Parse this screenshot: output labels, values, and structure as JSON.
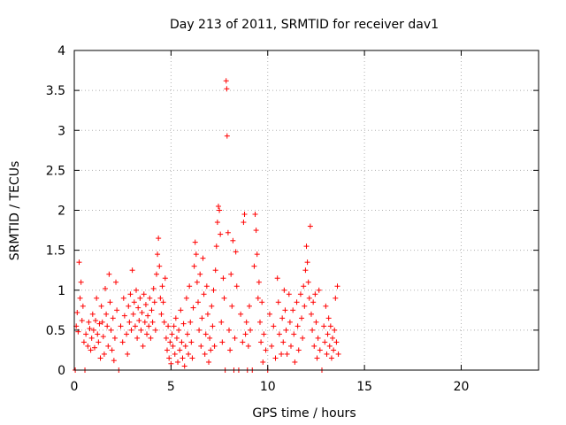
{
  "chart_data": {
    "type": "scatter",
    "title": "Day 213 of 2011, SRMTID for receiver dav1",
    "xlabel": "GPS time / hours",
    "ylabel": "SRMTID / TECUs",
    "xlim": [
      0,
      24
    ],
    "ylim": [
      0,
      4
    ],
    "xticks": [
      0,
      5,
      10,
      15,
      20
    ],
    "yticks": [
      0,
      0.5,
      1,
      1.5,
      2,
      2.5,
      3,
      3.5,
      4
    ],
    "xtick_labels": [
      "0",
      "5",
      "10",
      "15",
      "20"
    ],
    "ytick_labels": [
      "0",
      "0.5",
      "1",
      "1.5",
      "2",
      "2.5",
      "3",
      "3.5",
      "4"
    ],
    "grid": true,
    "marker": "+",
    "marker_color": "#ff0000",
    "series": [
      {
        "name": "dav1",
        "points": [
          [
            0.05,
            0.0
          ],
          [
            0.1,
            0.55
          ],
          [
            0.15,
            0.72
          ],
          [
            0.2,
            0.48
          ],
          [
            0.25,
            1.35
          ],
          [
            0.3,
            0.9
          ],
          [
            0.35,
            1.1
          ],
          [
            0.4,
            0.62
          ],
          [
            0.45,
            0.8
          ],
          [
            0.5,
            0.35
          ],
          [
            0.55,
            0.0
          ],
          [
            0.6,
            0.45
          ],
          [
            0.7,
            0.3
          ],
          [
            0.75,
            0.6
          ],
          [
            0.8,
            0.52
          ],
          [
            0.85,
            0.25
          ],
          [
            0.9,
            0.4
          ],
          [
            0.95,
            0.7
          ],
          [
            1.0,
            0.5
          ],
          [
            1.05,
            0.28
          ],
          [
            1.1,
            0.62
          ],
          [
            1.15,
            0.9
          ],
          [
            1.2,
            0.45
          ],
          [
            1.25,
            0.35
          ],
          [
            1.3,
            0.58
          ],
          [
            1.35,
            0.15
          ],
          [
            1.4,
            0.8
          ],
          [
            1.45,
            0.6
          ],
          [
            1.5,
            0.42
          ],
          [
            1.55,
            0.2
          ],
          [
            1.6,
            1.02
          ],
          [
            1.65,
            0.7
          ],
          [
            1.7,
            0.55
          ],
          [
            1.75,
            0.3
          ],
          [
            1.8,
            1.2
          ],
          [
            1.85,
            0.85
          ],
          [
            1.9,
            0.5
          ],
          [
            1.95,
            0.25
          ],
          [
            2.0,
            0.65
          ],
          [
            2.05,
            0.12
          ],
          [
            2.1,
            0.4
          ],
          [
            2.15,
            1.1
          ],
          [
            2.2,
            0.75
          ],
          [
            2.3,
            0.0
          ],
          [
            2.4,
            0.55
          ],
          [
            2.5,
            0.35
          ],
          [
            2.55,
            0.9
          ],
          [
            2.6,
            0.68
          ],
          [
            2.7,
            0.45
          ],
          [
            2.75,
            0.2
          ],
          [
            2.8,
            0.8
          ],
          [
            2.85,
            0.6
          ],
          [
            2.9,
            0.95
          ],
          [
            2.95,
            0.5
          ],
          [
            3.0,
            1.25
          ],
          [
            3.05,
            0.7
          ],
          [
            3.1,
            0.85
          ],
          [
            3.15,
            0.55
          ],
          [
            3.2,
            1.0
          ],
          [
            3.25,
            0.4
          ],
          [
            3.3,
            0.78
          ],
          [
            3.35,
            0.62
          ],
          [
            3.4,
            0.9
          ],
          [
            3.45,
            0.5
          ],
          [
            3.5,
            0.72
          ],
          [
            3.55,
            0.3
          ],
          [
            3.6,
            0.95
          ],
          [
            3.65,
            0.6
          ],
          [
            3.7,
            0.82
          ],
          [
            3.75,
            0.45
          ],
          [
            3.8,
            0.68
          ],
          [
            3.85,
            0.55
          ],
          [
            3.9,
            0.9
          ],
          [
            3.95,
            0.4
          ],
          [
            4.0,
            0.75
          ],
          [
            4.05,
            0.6
          ],
          [
            4.1,
            1.02
          ],
          [
            4.15,
            0.85
          ],
          [
            4.2,
            0.5
          ],
          [
            4.25,
            1.2
          ],
          [
            4.3,
            1.45
          ],
          [
            4.35,
            1.65
          ],
          [
            4.4,
            1.3
          ],
          [
            4.45,
            0.9
          ],
          [
            4.5,
            0.7
          ],
          [
            4.55,
            1.05
          ],
          [
            4.6,
            0.85
          ],
          [
            4.65,
            0.6
          ],
          [
            4.7,
            1.15
          ],
          [
            4.75,
            0.4
          ],
          [
            4.8,
            0.25
          ],
          [
            4.85,
            0.55
          ],
          [
            4.9,
            0.15
          ],
          [
            4.95,
            0.35
          ],
          [
            5.0,
            0.08
          ],
          [
            5.05,
            0.45
          ],
          [
            5.1,
            0.3
          ],
          [
            5.15,
            0.55
          ],
          [
            5.2,
            0.2
          ],
          [
            5.25,
            0.65
          ],
          [
            5.3,
            0.4
          ],
          [
            5.35,
            0.1
          ],
          [
            5.4,
            0.5
          ],
          [
            5.45,
            0.25
          ],
          [
            5.5,
            0.75
          ],
          [
            5.55,
            0.35
          ],
          [
            5.6,
            0.15
          ],
          [
            5.65,
            0.58
          ],
          [
            5.7,
            0.05
          ],
          [
            5.75,
            0.3
          ],
          [
            5.8,
            0.9
          ],
          [
            5.85,
            0.45
          ],
          [
            5.9,
            0.2
          ],
          [
            5.95,
            1.05
          ],
          [
            6.0,
            0.6
          ],
          [
            6.05,
            0.35
          ],
          [
            6.1,
            0.15
          ],
          [
            6.15,
            0.78
          ],
          [
            6.2,
            1.3
          ],
          [
            6.25,
            1.6
          ],
          [
            6.3,
            1.45
          ],
          [
            6.35,
            1.1
          ],
          [
            6.4,
            0.85
          ],
          [
            6.45,
            0.5
          ],
          [
            6.5,
            1.2
          ],
          [
            6.55,
            0.3
          ],
          [
            6.6,
            0.65
          ],
          [
            6.65,
            1.4
          ],
          [
            6.7,
            0.95
          ],
          [
            6.75,
            0.2
          ],
          [
            6.8,
            0.45
          ],
          [
            6.85,
            1.05
          ],
          [
            6.9,
            0.7
          ],
          [
            6.95,
            0.1
          ],
          [
            7.0,
            0.4
          ],
          [
            7.05,
            0.25
          ],
          [
            7.1,
            0.8
          ],
          [
            7.15,
            0.55
          ],
          [
            7.2,
            1.0
          ],
          [
            7.25,
            0.3
          ],
          [
            7.3,
            1.25
          ],
          [
            7.35,
            1.55
          ],
          [
            7.4,
            1.85
          ],
          [
            7.45,
            2.05
          ],
          [
            7.5,
            2.0
          ],
          [
            7.55,
            1.7
          ],
          [
            7.6,
            0.6
          ],
          [
            7.65,
            0.35
          ],
          [
            7.7,
            1.15
          ],
          [
            7.75,
            0.9
          ],
          [
            7.8,
            0.0
          ],
          [
            7.85,
            3.62
          ],
          [
            7.88,
            3.52
          ],
          [
            7.9,
            2.93
          ],
          [
            7.95,
            1.72
          ],
          [
            8.0,
            0.5
          ],
          [
            8.05,
            0.25
          ],
          [
            8.1,
            1.2
          ],
          [
            8.15,
            0.8
          ],
          [
            8.2,
            1.62
          ],
          [
            8.25,
            0.0
          ],
          [
            8.3,
            0.4
          ],
          [
            8.35,
            1.48
          ],
          [
            8.4,
            1.05
          ],
          [
            8.5,
            0.0
          ],
          [
            8.6,
            0.7
          ],
          [
            8.7,
            0.35
          ],
          [
            8.75,
            1.85
          ],
          [
            8.8,
            1.95
          ],
          [
            8.85,
            0.45
          ],
          [
            8.9,
            0.6
          ],
          [
            8.95,
            0.0
          ],
          [
            9.0,
            0.3
          ],
          [
            9.05,
            0.8
          ],
          [
            9.1,
            0.5
          ],
          [
            9.2,
            0.0
          ],
          [
            9.3,
            1.3
          ],
          [
            9.35,
            1.95
          ],
          [
            9.4,
            1.75
          ],
          [
            9.45,
            1.45
          ],
          [
            9.5,
            0.9
          ],
          [
            9.55,
            1.1
          ],
          [
            9.6,
            0.6
          ],
          [
            9.65,
            0.35
          ],
          [
            9.7,
            0.85
          ],
          [
            9.75,
            0.1
          ],
          [
            9.8,
            0.45
          ],
          [
            9.9,
            0.25
          ],
          [
            10.0,
            0.0
          ],
          [
            10.1,
            0.7
          ],
          [
            10.2,
            0.3
          ],
          [
            10.3,
            0.55
          ],
          [
            10.4,
            0.15
          ],
          [
            10.5,
            1.15
          ],
          [
            10.55,
            0.85
          ],
          [
            10.6,
            0.45
          ],
          [
            10.7,
            0.2
          ],
          [
            10.75,
            0.65
          ],
          [
            10.8,
            0.35
          ],
          [
            10.85,
            1.0
          ],
          [
            10.9,
            0.75
          ],
          [
            10.95,
            0.5
          ],
          [
            11.0,
            0.2
          ],
          [
            11.1,
            0.95
          ],
          [
            11.15,
            0.6
          ],
          [
            11.2,
            0.3
          ],
          [
            11.3,
            0.75
          ],
          [
            11.35,
            0.45
          ],
          [
            11.4,
            0.1
          ],
          [
            11.5,
            0.85
          ],
          [
            11.55,
            0.55
          ],
          [
            11.6,
            0.25
          ],
          [
            11.7,
            0.95
          ],
          [
            11.75,
            0.65
          ],
          [
            11.8,
            0.4
          ],
          [
            11.85,
            1.05
          ],
          [
            11.9,
            0.8
          ],
          [
            11.95,
            1.25
          ],
          [
            12.0,
            1.55
          ],
          [
            12.05,
            1.35
          ],
          [
            12.1,
            1.1
          ],
          [
            12.15,
            0.9
          ],
          [
            12.2,
            1.8
          ],
          [
            12.25,
            0.7
          ],
          [
            12.3,
            0.5
          ],
          [
            12.35,
            0.85
          ],
          [
            12.4,
            0.3
          ],
          [
            12.45,
            0.95
          ],
          [
            12.5,
            0.6
          ],
          [
            12.55,
            0.15
          ],
          [
            12.6,
            0.4
          ],
          [
            12.65,
            1.0
          ],
          [
            12.7,
            0.25
          ],
          [
            12.8,
            0.0
          ],
          [
            12.9,
            0.55
          ],
          [
            12.95,
            0.35
          ],
          [
            13.0,
            0.8
          ],
          [
            13.05,
            0.2
          ],
          [
            13.1,
            0.45
          ],
          [
            13.15,
            0.65
          ],
          [
            13.2,
            0.3
          ],
          [
            13.25,
            0.55
          ],
          [
            13.3,
            0.15
          ],
          [
            13.35,
            0.4
          ],
          [
            13.4,
            0.25
          ],
          [
            13.45,
            0.5
          ],
          [
            13.5,
            0.9
          ],
          [
            13.55,
            0.35
          ],
          [
            13.6,
            1.05
          ],
          [
            13.65,
            0.2
          ]
        ]
      }
    ]
  }
}
